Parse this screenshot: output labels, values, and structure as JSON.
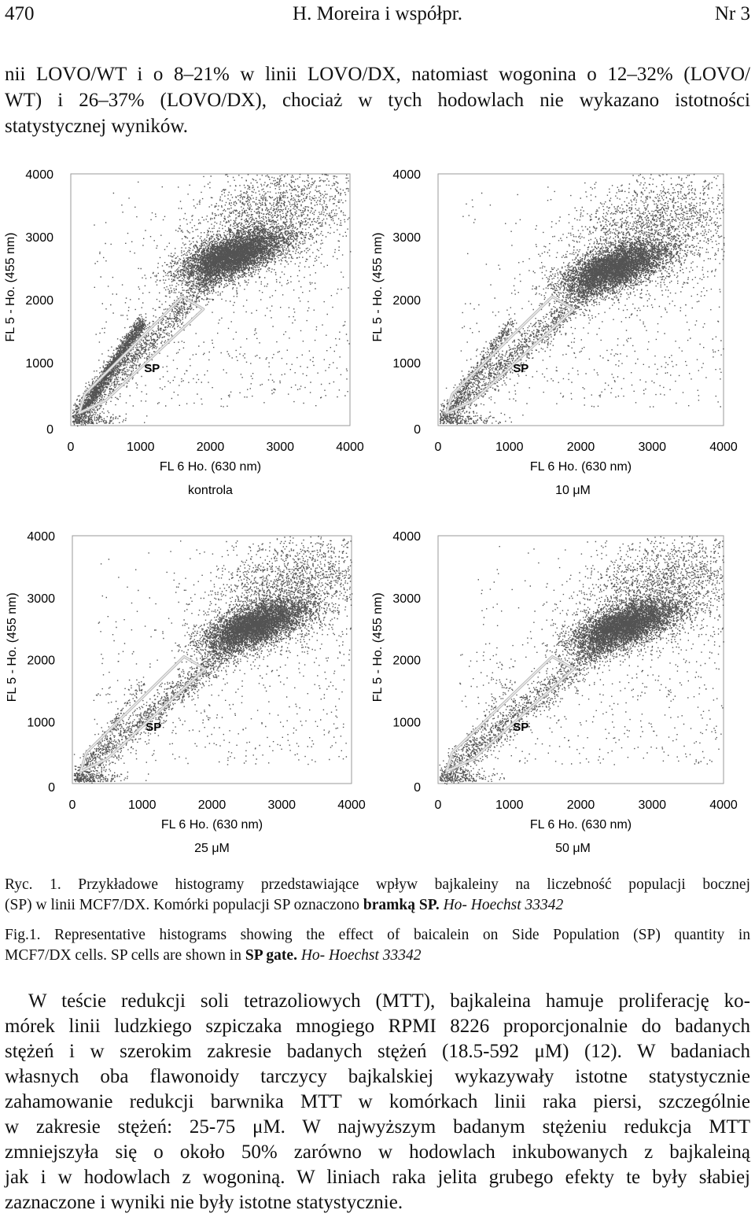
{
  "header": {
    "page_number": "470",
    "authors": "H. Moreira i współpr.",
    "issue": "Nr 3"
  },
  "intro_lines": [
    "nii LOVO/WT i o 8–21% w linii LOVO/DX, natomiast wogonina o 12–32% (LOVO/",
    "WT) i 26–37% (LOVO/DX), chociaż w tych hodowlach nie wykazano istotności",
    "statystycznej wyników."
  ],
  "figure": {
    "x_axis_label": "FL 6 Ho. (630 nm)",
    "y_axis_label": "FL 5 - Ho. (455 nm)",
    "gate_label": "SP",
    "panels": [
      {
        "caption": "kontrola"
      },
      {
        "caption": "10 μM"
      },
      {
        "caption": "25 μM"
      },
      {
        "caption": "50 μM"
      }
    ]
  },
  "chart_data": [
    {
      "type": "scatter",
      "title": "kontrola",
      "xlabel": "FL 6 Ho. (630 nm)",
      "ylabel": "FL 5 - Ho. (455 nm)",
      "xlim": [
        0,
        4000
      ],
      "ylim": [
        0,
        4000
      ],
      "xticks": [
        0,
        1000,
        2000,
        3000,
        4000
      ],
      "yticks": [
        0,
        1000,
        2000,
        3000,
        4000
      ],
      "main_cluster_center": [
        2300,
        2700
      ],
      "sp_gate_density": "high",
      "annotation": "SP"
    },
    {
      "type": "scatter",
      "title": "10 μM",
      "xlabel": "FL 6 Ho. (630 nm)",
      "ylabel": "FL 5 - Ho. (455 nm)",
      "xlim": [
        0,
        4000
      ],
      "ylim": [
        0,
        4000
      ],
      "xticks": [
        0,
        1000,
        2000,
        3000,
        4000
      ],
      "yticks": [
        0,
        1000,
        2000,
        3000,
        4000
      ],
      "main_cluster_center": [
        2450,
        2500
      ],
      "sp_gate_density": "medium",
      "annotation": "SP"
    },
    {
      "type": "scatter",
      "title": "25 μM",
      "xlabel": "FL 6 Ho. (630 nm)",
      "ylabel": "FL 5 - Ho. (455 nm)",
      "xlim": [
        0,
        4000
      ],
      "ylim": [
        0,
        4000
      ],
      "xticks": [
        0,
        1000,
        2000,
        3000,
        4000
      ],
      "yticks": [
        0,
        1000,
        2000,
        3000,
        4000
      ],
      "main_cluster_center": [
        2600,
        2550
      ],
      "sp_gate_density": "low",
      "annotation": "SP"
    },
    {
      "type": "scatter",
      "title": "50 μM",
      "xlabel": "FL 6 Ho. (630 nm)",
      "ylabel": "FL 5 - Ho. (455 nm)",
      "xlim": [
        0,
        4000
      ],
      "ylim": [
        0,
        4000
      ],
      "xticks": [
        0,
        1000,
        2000,
        3000,
        4000
      ],
      "yticks": [
        0,
        1000,
        2000,
        3000,
        4000
      ],
      "main_cluster_center": [
        2600,
        2550
      ],
      "sp_gate_density": "very low",
      "annotation": "SP"
    }
  ],
  "caption_pl": {
    "label": "Ryc. 1.",
    "line1": "Przykładowe histogramy przedstawiające wpływ bajkaleiny na liczebność populacji bocznej",
    "line2_a": "(SP) w linii MCF7/DX. Komórki populacji SP oznaczono ",
    "line2_b": "bramką SP.",
    "line2_c": " Ho- Hoechst 33342"
  },
  "caption_en": {
    "label": "Fig.1.",
    "line1": "Representative histograms showing the effect of baicalein on Side Population (SP) quantity in",
    "line2_a": "MCF7/DX cells. SP cells are shown in ",
    "line2_b": "SP gate.",
    "line2_c": " Ho- Hoechst 33342"
  },
  "body_lines": [
    "W teście redukcji soli tetrazoliowych (MTT), bajkaleina hamuje proliferację ko-",
    "mórek linii ludzkiego szpiczaka mnogiego RPMI 8226 proporcjonalnie do badanych",
    "stężeń i w szerokim zakresie badanych stężeń (18.5-592 μM) (12). W badaniach",
    "własnych oba flawonoidy tarczycy bajkalskiej wykazywały istotne statystycznie",
    "zahamowanie redukcji barwnika MTT w komórkach linii raka piersi, szczególnie",
    "w zakresie stężeń: 25-75 μM. W najwyższym badanym stężeniu redukcja MTT",
    "zmniejszyła się o około 50% zarówno w hodowlach inkubowanych z bajkaleiną",
    "jak i w hodowlach z wogoniną. W liniach raka jelita grubego efekty te były słabiej",
    "zaznaczone i wyniki nie były istotne statystycznie."
  ]
}
